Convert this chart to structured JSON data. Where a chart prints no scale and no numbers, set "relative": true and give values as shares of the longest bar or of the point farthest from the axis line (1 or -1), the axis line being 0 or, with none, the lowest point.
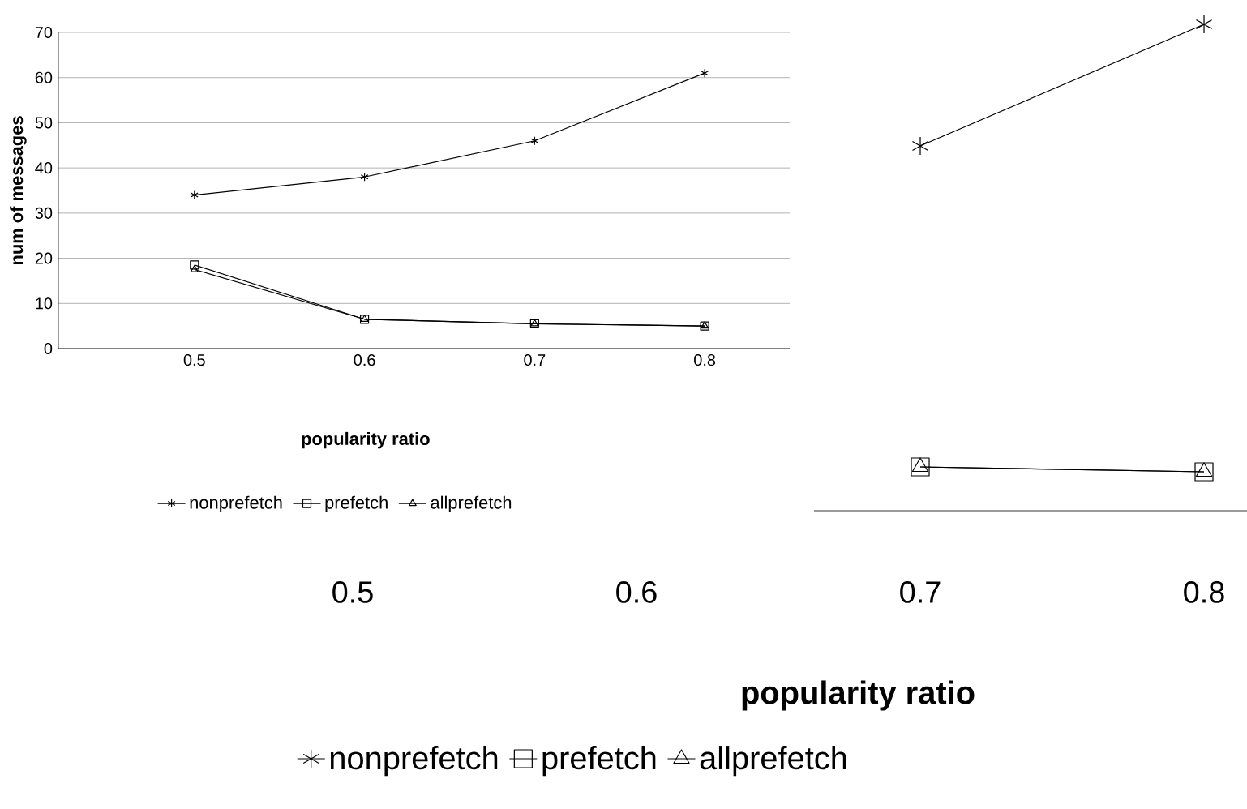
{
  "chart_data": [
    {
      "type": "line",
      "categories": [
        "0.5",
        "0.6",
        "0.7",
        "0.8"
      ],
      "xlabel": "popularity ratio",
      "ylabel": "num of messages",
      "ylim": [
        0,
        70
      ],
      "yticks": [
        0,
        10,
        20,
        30,
        40,
        50,
        60,
        70
      ],
      "grid": "y",
      "legend": "bottom",
      "series": [
        {
          "name": "nonprefetch",
          "color": "#000000",
          "marker": "cross",
          "values": [
            34,
            38,
            46,
            61
          ]
        },
        {
          "name": "prefetch",
          "color": "#000000",
          "marker": "square",
          "values": [
            18.5,
            6.5,
            5.5,
            5
          ]
        },
        {
          "name": "allprefetch",
          "color": "#000000",
          "marker": "triangle",
          "values": [
            17.5,
            6.5,
            5.5,
            5
          ]
        }
      ]
    },
    {
      "type": "line",
      "categories": [
        "0.5",
        "0.6",
        "0.7",
        "0.8"
      ],
      "xlabel": "popularity ratio",
      "relative": true,
      "legend": "bottom",
      "series": [
        {
          "name": "nonprefetch",
          "color": "#000000",
          "marker": "cross",
          "values": [
            null,
            null,
            0.75,
            1
          ]
        },
        {
          "name": "prefetch",
          "color": "#000000",
          "marker": "square",
          "values": [
            null,
            null,
            0.09,
            0.08
          ]
        },
        {
          "name": "allprefetch",
          "color": "#000000",
          "marker": "triangle",
          "values": [
            null,
            null,
            0.09,
            0.08
          ]
        }
      ]
    }
  ]
}
